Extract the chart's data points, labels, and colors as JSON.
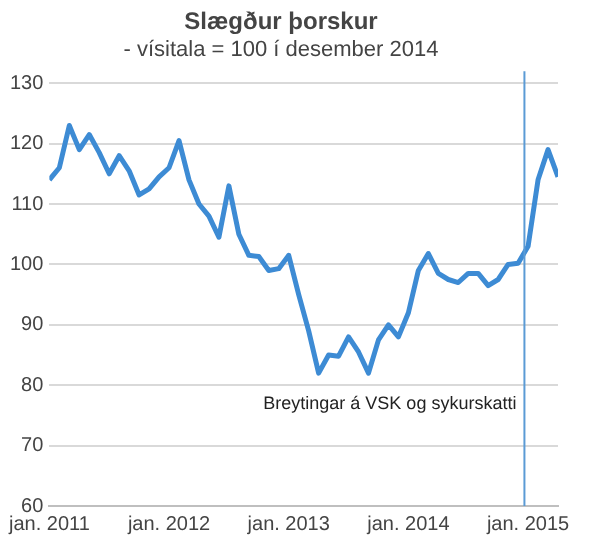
{
  "chart_data": {
    "type": "line",
    "title": "Slægður þorskur",
    "subtitle": "- vísitala = 100 í desember 2014",
    "x": [
      "2011-01",
      "2011-02",
      "2011-03",
      "2011-04",
      "2011-05",
      "2011-06",
      "2011-07",
      "2011-08",
      "2011-09",
      "2011-10",
      "2011-11",
      "2011-12",
      "2012-01",
      "2012-02",
      "2012-03",
      "2012-04",
      "2012-05",
      "2012-06",
      "2012-07",
      "2012-08",
      "2012-09",
      "2012-10",
      "2012-11",
      "2012-12",
      "2013-01",
      "2013-02",
      "2013-03",
      "2013-04",
      "2013-05",
      "2013-06",
      "2013-07",
      "2013-08",
      "2013-09",
      "2013-10",
      "2013-11",
      "2013-12",
      "2014-01",
      "2014-02",
      "2014-03",
      "2014-04",
      "2014-05",
      "2014-06",
      "2014-07",
      "2014-08",
      "2014-09",
      "2014-10",
      "2014-11",
      "2014-12",
      "2015-01",
      "2015-02",
      "2015-03",
      "2015-04"
    ],
    "series": [
      {
        "color": "#3d8bd4",
        "values": [
          114,
          116,
          123,
          119,
          121.5,
          118.5,
          115,
          118,
          115.5,
          111.5,
          112.5,
          114.5,
          116,
          120.5,
          114,
          110,
          108,
          104.5,
          113,
          105,
          101.5,
          101.3,
          99,
          99.3,
          101.5,
          95,
          89,
          82,
          85,
          84.8,
          88,
          85.5,
          82,
          87.5,
          90,
          88,
          92,
          99,
          101.8,
          98.5,
          97.5,
          97,
          98.5,
          98.5,
          96.5,
          97.5,
          100,
          100.2,
          103,
          114,
          119,
          114.5
        ]
      }
    ],
    "xlim": [
      "2011-01",
      "2015-04"
    ],
    "xticks": [
      {
        "value": "2011-01",
        "label": "jan. 2011"
      },
      {
        "value": "2012-01",
        "label": "jan. 2012"
      },
      {
        "value": "2013-01",
        "label": "jan. 2013"
      },
      {
        "value": "2014-01",
        "label": "jan. 2014"
      },
      {
        "value": "2015-01",
        "label": "jan. 2015"
      }
    ],
    "ylim": [
      60,
      130
    ],
    "yticks": [
      60,
      70,
      80,
      90,
      100,
      110,
      120,
      130
    ],
    "ref_lines": [
      {
        "axis": "x",
        "value": "2014-12-20",
        "label": "Breytingar á VSK og sykurskatti",
        "color": "#5b9bd5"
      }
    ],
    "grid": "y",
    "legend": false,
    "marker": "none",
    "line_style": "solid"
  }
}
